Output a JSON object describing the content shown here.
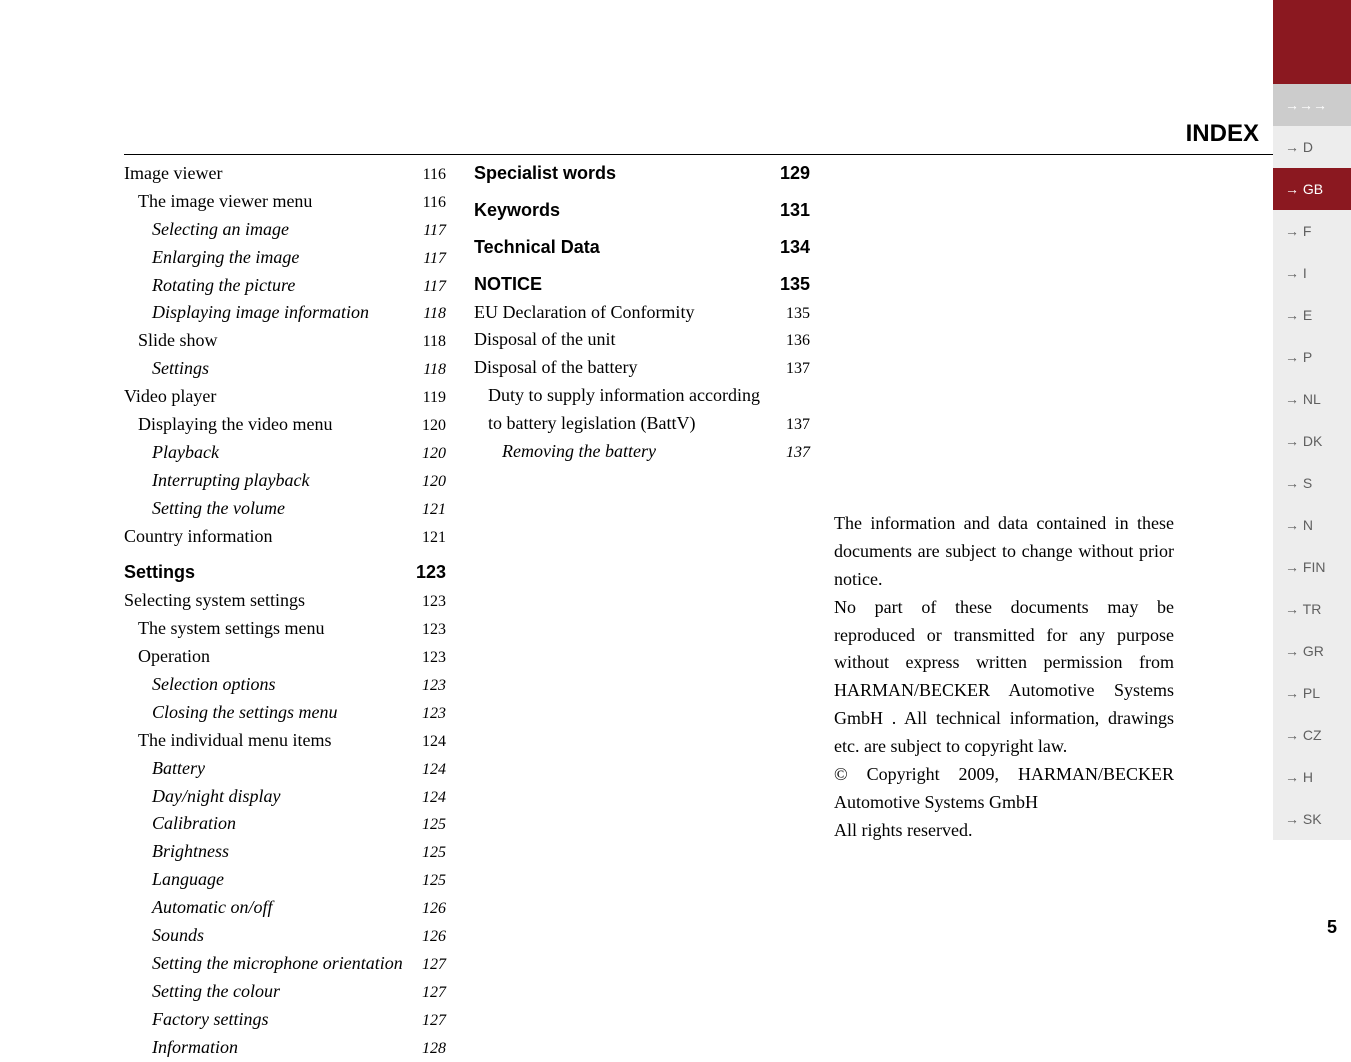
{
  "index_title": "INDEX",
  "page_number": "5",
  "tabs": {
    "header_glyphs": "→→→",
    "items": [
      "→ D",
      "→ GB",
      "→ F",
      "→ I",
      "→ E",
      "→ P",
      "→ NL",
      "→ DK",
      "→ S",
      "→ N",
      "→ FIN",
      "→ TR",
      "→ GR",
      "→ PL",
      "→ CZ",
      "→ H",
      "→ SK"
    ],
    "active_index": 1
  },
  "col1": [
    {
      "lvl": 0,
      "label": "Image viewer",
      "page": "116"
    },
    {
      "lvl": 1,
      "label": "The image viewer menu",
      "page": "116"
    },
    {
      "lvl": 2,
      "label": "Selecting an image",
      "page": "117"
    },
    {
      "lvl": 2,
      "label": "Enlarging the image",
      "page": "117"
    },
    {
      "lvl": 2,
      "label": "Rotating the picture",
      "page": "117"
    },
    {
      "lvl": 2,
      "label": "Displaying image information",
      "page": "118"
    },
    {
      "lvl": 1,
      "label": "Slide show",
      "page": "118"
    },
    {
      "lvl": 2,
      "label": "Settings",
      "page": "118"
    },
    {
      "lvl": 0,
      "label": "Video player",
      "page": "119"
    },
    {
      "lvl": 1,
      "label": "Displaying the video menu",
      "page": "120"
    },
    {
      "lvl": 2,
      "label": "Playback",
      "page": "120"
    },
    {
      "lvl": 2,
      "label": "Interrupting playback",
      "page": "120"
    },
    {
      "lvl": 2,
      "label": "Setting the volume",
      "page": "121"
    },
    {
      "lvl": 0,
      "label": "Country information",
      "page": "121"
    },
    {
      "lvl": "gap"
    },
    {
      "lvl": "sec",
      "label": "Settings",
      "page": "123"
    },
    {
      "lvl": 0,
      "label": "Selecting system settings",
      "page": "123"
    },
    {
      "lvl": 1,
      "label": "The system settings menu",
      "page": "123"
    },
    {
      "lvl": 1,
      "label": "Operation",
      "page": "123"
    },
    {
      "lvl": 2,
      "label": "Selection options",
      "page": "123"
    },
    {
      "lvl": 2,
      "label": "Closing the settings menu",
      "page": "123"
    },
    {
      "lvl": 1,
      "label": "The individual menu items",
      "page": "124"
    },
    {
      "lvl": 2,
      "label": "Battery",
      "page": "124"
    },
    {
      "lvl": 2,
      "label": "Day/night display",
      "page": "124"
    },
    {
      "lvl": 2,
      "label": "Calibration",
      "page": "125"
    },
    {
      "lvl": 2,
      "label": "Brightness",
      "page": "125"
    },
    {
      "lvl": 2,
      "label": "Language",
      "page": "125"
    },
    {
      "lvl": 2,
      "label": "Automatic on/off",
      "page": "126"
    },
    {
      "lvl": 2,
      "label": "Sounds",
      "page": "126"
    },
    {
      "lvl": 2,
      "label": "Setting the microphone orientation",
      "page": "127"
    },
    {
      "lvl": 2,
      "label": "Setting the colour",
      "page": "127"
    },
    {
      "lvl": 2,
      "label": "Factory settings",
      "page": "127"
    },
    {
      "lvl": 2,
      "label": "Information",
      "page": "128"
    }
  ],
  "col2": [
    {
      "lvl": "sec",
      "label": "Specialist words",
      "page": "129"
    },
    {
      "lvl": "gap"
    },
    {
      "lvl": "sec",
      "label": "Keywords",
      "page": "131"
    },
    {
      "lvl": "gap"
    },
    {
      "lvl": "sec",
      "label": "Technical Data",
      "page": "134"
    },
    {
      "lvl": "gap"
    },
    {
      "lvl": "sec",
      "label": "NOTICE",
      "page": "135"
    },
    {
      "lvl": 0,
      "label": "EU Declaration of Conformity",
      "page": "135"
    },
    {
      "lvl": 0,
      "label": "Disposal of the unit",
      "page": "136"
    },
    {
      "lvl": 0,
      "label": "Disposal of the battery",
      "page": "137"
    },
    {
      "lvl": 1,
      "label": "Duty to supply information according",
      "page": ""
    },
    {
      "lvl": 1,
      "label": "to battery legislation (BattV)",
      "page": "137"
    },
    {
      "lvl": 2,
      "label": "Removing the battery",
      "page": "137"
    }
  ],
  "notice": {
    "p1": "The information and data contained in these documents are subject to change without prior notice.",
    "p2": "No part of these documents may be reproduced or transmitted for any purpose without express written permission from HARMAN/BECKER Automotive Systems GmbH . All technical information, drawings etc. are subject to copyright law.",
    "p3": "© Copyright 2009, HARMAN/BECKER Automotive Systems GmbH",
    "p4": "All rights reserved."
  }
}
